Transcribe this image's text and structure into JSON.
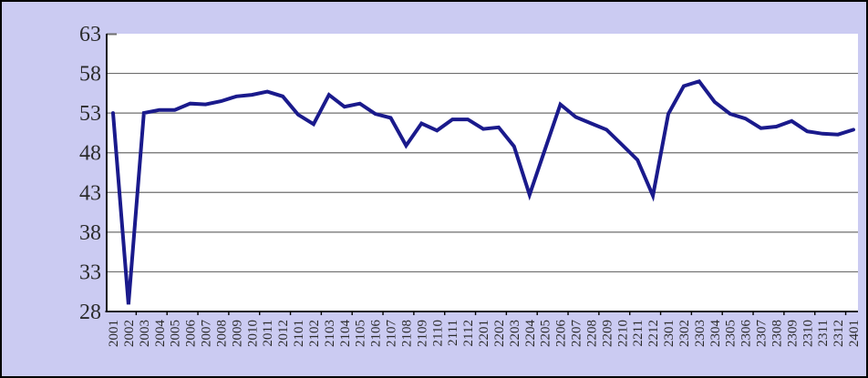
{
  "chart_data": {
    "type": "line",
    "title": "",
    "xlabel": "",
    "ylabel": "",
    "categories": [
      "2001",
      "2002",
      "2003",
      "2004",
      "2005",
      "2006",
      "2007",
      "2008",
      "2009",
      "2010",
      "2011",
      "2012",
      "2101",
      "2102",
      "2103",
      "2104",
      "2105",
      "2106",
      "2107",
      "2108",
      "2109",
      "2110",
      "2111",
      "2112",
      "2201",
      "2202",
      "2203",
      "2204",
      "2205",
      "2206",
      "2207",
      "2208",
      "2209",
      "2210",
      "2211",
      "2212",
      "2301",
      "2302",
      "2303",
      "2304",
      "2305",
      "2306",
      "2307",
      "2308",
      "2309",
      "2310",
      "2311",
      "2312",
      "2401"
    ],
    "values": [
      53.0,
      28.9,
      53.0,
      53.4,
      53.4,
      54.2,
      54.1,
      54.5,
      55.1,
      55.3,
      55.7,
      55.1,
      52.8,
      51.6,
      55.3,
      53.8,
      54.2,
      52.9,
      52.4,
      48.9,
      51.7,
      50.8,
      52.2,
      52.2,
      51.0,
      51.2,
      48.8,
      42.7,
      48.4,
      54.1,
      52.5,
      51.7,
      50.9,
      49.0,
      47.1,
      42.6,
      52.9,
      56.4,
      57.0,
      54.4,
      52.9,
      52.3,
      51.1,
      51.3,
      52.0,
      50.7,
      50.4,
      50.3,
      50.9
    ],
    "ylim": [
      28,
      63
    ],
    "ytick_step": 5,
    "ytick_labels": [
      "63",
      "58",
      "53",
      "48",
      "43",
      "38",
      "33",
      "28"
    ],
    "grid": true,
    "legend": false
  },
  "colors": {
    "background": "#cbcbf2",
    "plot_background": "#ffffff",
    "line": "#1a1a8c",
    "gridline": "#6e6e6e",
    "axis": "#000000",
    "tick": "#000000",
    "label_text": "#2b2b2b",
    "border": "#000000"
  }
}
